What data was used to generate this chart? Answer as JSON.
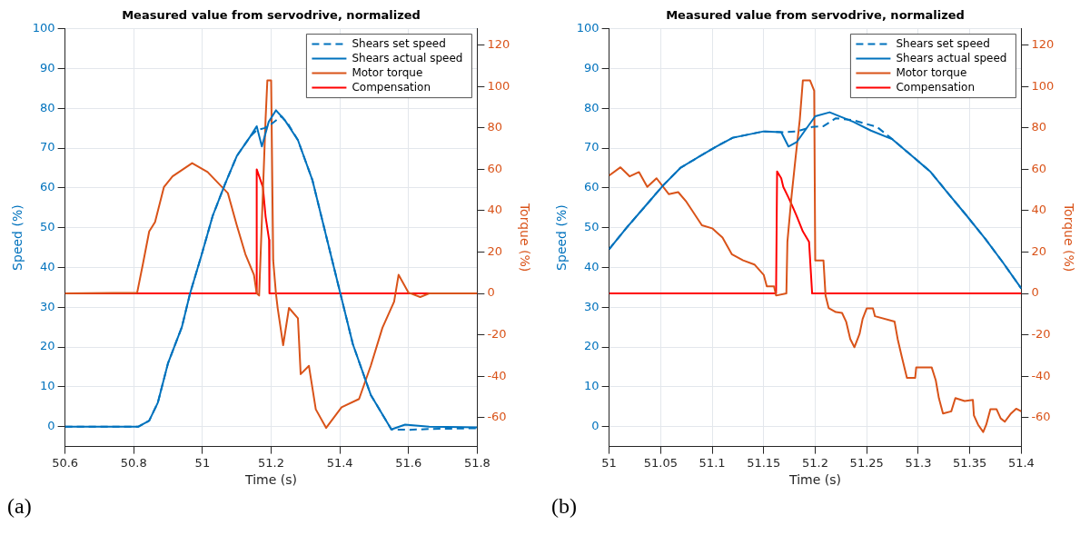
{
  "chart_data": [
    {
      "type": "line",
      "title": "Measured value from servodrive, normalized",
      "xlabel": "Time (s)",
      "ylabel": "Speed (%)",
      "y2label": "Torque (%)",
      "annotations": [
        "(a)"
      ],
      "xlim": [
        50.6,
        51.8
      ],
      "xticks": [
        50.6,
        50.8,
        51,
        51.2,
        51.4,
        51.6,
        51.8
      ],
      "ylim": [
        -5,
        100
      ],
      "yticks": [
        0,
        10,
        20,
        30,
        40,
        50,
        60,
        70,
        80,
        90,
        100
      ],
      "y2lim": [
        -74,
        128
      ],
      "y2ticks": [
        -60,
        -40,
        -20,
        0,
        20,
        40,
        60,
        80,
        100,
        120
      ],
      "grid": true,
      "legend": "top right",
      "marker": "none",
      "series": [
        {
          "name": "Shears set speed",
          "color": "#0072bd",
          "line_style": "dashed",
          "x": [
            50.6,
            50.814,
            50.845,
            50.87,
            50.9,
            50.94,
            50.964,
            50.997,
            51.03,
            51.066,
            51.1,
            51.14,
            51.158,
            51.18,
            51.2,
            51.23,
            51.25,
            51.278,
            51.32,
            51.36,
            51.4,
            51.438,
            51.49,
            51.55,
            51.6,
            51.66,
            51.8
          ],
          "values": [
            0,
            0,
            1.5,
            6,
            16,
            25,
            33.5,
            43,
            53,
            61,
            68,
            73,
            74.5,
            75,
            76,
            78,
            76,
            72,
            62,
            48,
            34,
            20.7,
            8,
            -0.7,
            -0.8,
            -0.6,
            -0.4
          ]
        },
        {
          "name": "Shears actual speed",
          "color": "#0072bd",
          "line_style": "solid",
          "x": [
            50.6,
            50.814,
            50.845,
            50.87,
            50.9,
            50.94,
            50.964,
            50.997,
            51.03,
            51.066,
            51.1,
            51.14,
            51.158,
            51.173,
            51.193,
            51.214,
            51.24,
            51.278,
            51.32,
            51.36,
            51.4,
            51.438,
            51.49,
            51.55,
            51.59,
            51.66,
            51.8
          ],
          "values": [
            0,
            0,
            1.5,
            6,
            16,
            25,
            33.5,
            43,
            53,
            61,
            68,
            73,
            75.5,
            70.4,
            76.6,
            79.5,
            77,
            72,
            62,
            48,
            34,
            20.7,
            8,
            -0.7,
            0.5,
            0,
            -0.2
          ]
        },
        {
          "name": "Motor torque",
          "color": "#d95319",
          "axis": "y2",
          "line_style": "solid",
          "x": [
            50.6,
            50.81,
            50.827,
            50.845,
            50.862,
            50.888,
            50.913,
            50.97,
            51.015,
            51.048,
            51.074,
            51.1,
            51.125,
            51.15,
            51.158,
            51.165,
            51.171,
            51.184,
            51.189,
            51.2,
            51.206,
            51.214,
            51.219,
            51.235,
            51.252,
            51.278,
            51.286,
            51.31,
            51.33,
            51.36,
            51.405,
            51.456,
            51.49,
            51.524,
            51.558,
            51.571,
            51.6,
            51.634,
            51.66,
            51.8
          ],
          "values": [
            0,
            0.4,
            14.5,
            30,
            34.5,
            51.5,
            56.6,
            63,
            58.7,
            53,
            48.5,
            33,
            19,
            9,
            0,
            -1,
            26,
            85,
            103,
            103,
            16,
            0,
            -7,
            -25,
            -7,
            -12,
            -39,
            -35,
            -56,
            -65,
            -55,
            -51,
            -35,
            -16.6,
            -4,
            9,
            0.4,
            -1.7,
            0,
            0
          ]
        },
        {
          "name": "Compensation",
          "color": "#ff0000",
          "axis": "y2",
          "line_style": "solid",
          "x": [
            50.6,
            51.157,
            51.158,
            51.176,
            51.184,
            51.194,
            51.195,
            51.8
          ],
          "values": [
            0,
            0,
            60,
            51.5,
            37,
            26,
            0,
            0
          ]
        }
      ]
    },
    {
      "type": "line",
      "title": "Measured value from servodrive, normalized",
      "xlabel": "Time (s)",
      "ylabel": "Speed (%)",
      "y2label": "Torque (%)",
      "annotations": [
        "(b)"
      ],
      "xlim": [
        51,
        51.4
      ],
      "xticks": [
        51,
        51.05,
        51.1,
        51.15,
        51.2,
        51.25,
        51.3,
        51.35,
        51.4
      ],
      "ylim": [
        -5,
        100
      ],
      "yticks": [
        0,
        10,
        20,
        30,
        40,
        50,
        60,
        70,
        80,
        90,
        100
      ],
      "y2lim": [
        -74,
        128
      ],
      "y2ticks": [
        -60,
        -40,
        -20,
        0,
        20,
        40,
        60,
        80,
        100,
        120
      ],
      "grid": true,
      "legend": "top right",
      "marker": "none",
      "series": [
        {
          "name": "Shears set speed",
          "color": "#0072bd",
          "line_style": "dashed",
          "x": [
            51,
            51.017,
            51.035,
            51.052,
            51.069,
            51.087,
            51.104,
            51.12,
            51.15,
            51.167,
            51.182,
            51.197,
            51.208,
            51.22,
            51.237,
            51.26,
            51.275,
            51.295,
            51.312,
            51.33,
            51.347,
            51.365,
            51.382,
            51.4
          ],
          "values": [
            44.6,
            50,
            55.4,
            60.5,
            65,
            67.8,
            70.4,
            72.6,
            74.2,
            74,
            74.2,
            75.3,
            75.5,
            77.5,
            77,
            75.3,
            72.2,
            67.8,
            64,
            58.3,
            53,
            47.2,
            41.3,
            34.7
          ]
        },
        {
          "name": "Shears actual speed",
          "color": "#0072bd",
          "line_style": "solid",
          "x": [
            51,
            51.017,
            51.035,
            51.052,
            51.069,
            51.087,
            51.104,
            51.12,
            51.15,
            51.167,
            51.174,
            51.182,
            51.19,
            51.2,
            51.214,
            51.237,
            51.254,
            51.275,
            51.295,
            51.312,
            51.33,
            51.347,
            51.365,
            51.382,
            51.4
          ],
          "values": [
            44.6,
            50,
            55.4,
            60.5,
            65,
            67.8,
            70.4,
            72.6,
            74.2,
            74,
            70.4,
            71.5,
            74.4,
            78,
            79,
            76.6,
            74.4,
            72.2,
            67.8,
            64,
            58.3,
            53,
            47.2,
            41.3,
            34.7
          ]
        },
        {
          "name": "Motor torque",
          "color": "#d95319",
          "axis": "y2",
          "line_style": "solid",
          "x": [
            51,
            51.011,
            51.02,
            51.029,
            51.037,
            51.046,
            51.058,
            51.067,
            51.075,
            51.09,
            51.1,
            51.11,
            51.119,
            51.13,
            51.141,
            51.15,
            51.153,
            51.16,
            51.162,
            51.172,
            51.173,
            51.177,
            51.181,
            51.185,
            51.188,
            51.195,
            51.199,
            51.2,
            51.208,
            51.21,
            51.213,
            51.22,
            51.226,
            51.23,
            51.234,
            51.238,
            51.243,
            51.246,
            51.25,
            51.256,
            51.258,
            51.277,
            51.28,
            51.284,
            51.289,
            51.297,
            51.298,
            51.313,
            51.317,
            51.32,
            51.324,
            51.332,
            51.336,
            51.345,
            51.353,
            51.354,
            51.358,
            51.363,
            51.366,
            51.37,
            51.376,
            51.38,
            51.384,
            51.39,
            51.395,
            51.4
          ],
          "values": [
            57,
            61,
            56.6,
            58.7,
            51.5,
            55.7,
            48,
            49,
            44.3,
            33,
            31.5,
            27,
            19,
            16,
            14,
            9,
            3.4,
            3.4,
            -1,
            0,
            25,
            47,
            66,
            84,
            103,
            103,
            98,
            16,
            16,
            -1,
            -7,
            -9,
            -9.4,
            -13.6,
            -22,
            -26,
            -19.6,
            -12.3,
            -7.2,
            -7.2,
            -11,
            -13.6,
            -22,
            -30.6,
            -40.8,
            -40.8,
            -35.7,
            -35.7,
            -42,
            -50.6,
            -58,
            -57,
            -50.6,
            -52,
            -51.5,
            -59,
            -63.4,
            -67,
            -63.4,
            -56,
            -56,
            -60.4,
            -62,
            -58,
            -55.7,
            -57
          ]
        },
        {
          "name": "Compensation",
          "color": "#ff0000",
          "axis": "y2",
          "line_style": "solid",
          "x": [
            51,
            51.162,
            51.163,
            51.167,
            51.169,
            51.174,
            51.178,
            51.182,
            51.188,
            51.194,
            51.197,
            51.4
          ],
          "values": [
            0,
            0,
            59,
            55.7,
            51.5,
            46.4,
            42,
            37.4,
            30,
            25,
            0,
            0
          ]
        }
      ]
    }
  ]
}
